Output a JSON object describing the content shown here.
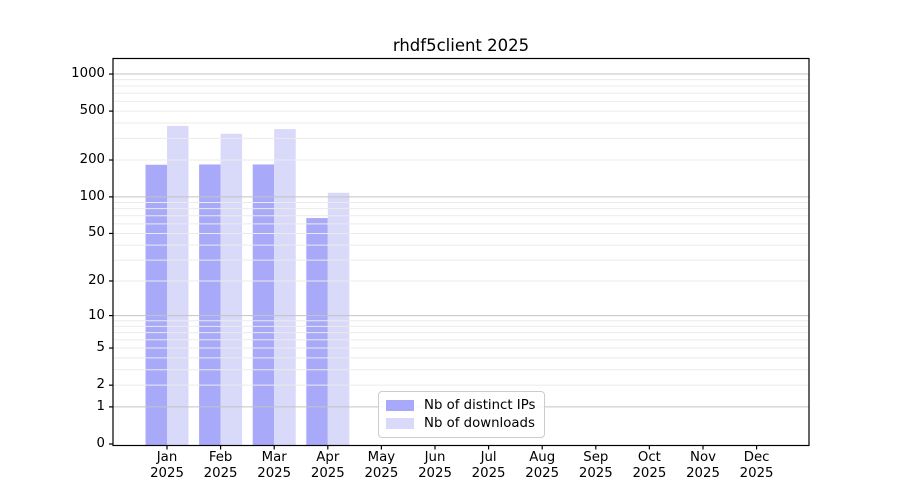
{
  "chart_data": {
    "type": "bar",
    "title": "rhdf5client 2025",
    "year_label": "2025",
    "categories": [
      "Jan",
      "Feb",
      "Mar",
      "Apr",
      "May",
      "Jun",
      "Jul",
      "Aug",
      "Sep",
      "Oct",
      "Nov",
      "Dec"
    ],
    "series": [
      {
        "name": "Nb of distinct IPs",
        "color": "#a9a9fa",
        "values": [
          183,
          184,
          184,
          67,
          0,
          0,
          0,
          0,
          0,
          0,
          0,
          0
        ]
      },
      {
        "name": "Nb of downloads",
        "color": "#d9d9fa",
        "values": [
          379,
          327,
          357,
          108,
          0,
          0,
          0,
          0,
          0,
          0,
          0,
          0
        ]
      }
    ],
    "xlabel": "",
    "ylabel": "",
    "y_scale": "log1p",
    "y_ticks": [
      0,
      1,
      2,
      5,
      10,
      20,
      50,
      100,
      200,
      500,
      1000
    ],
    "y_major_gridlines": [
      1,
      10,
      100,
      1000
    ],
    "ylim": [
      0,
      1325
    ],
    "grid": "horizontal, major+minor, drawn over bars",
    "legend_position": "inside lower-center-left",
    "colors": {
      "major_grid": "#c3c3c3",
      "minor_grid": "#ebebeb",
      "spine": "#000000",
      "tick": "#000000",
      "background": "#ffffff"
    }
  }
}
